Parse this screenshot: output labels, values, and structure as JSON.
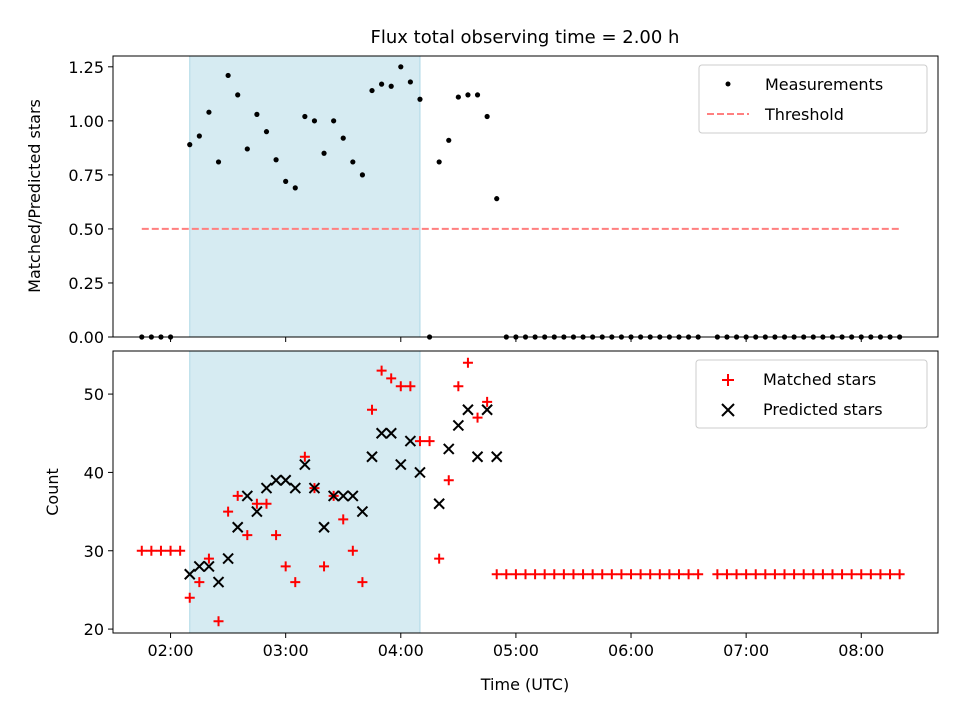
{
  "chart_data": [
    {
      "type": "scatter",
      "title": "Flux total observing time = 2.00 h",
      "ylabel": "Matched/Predicted stars",
      "xlim": [
        "01:30",
        "08:40"
      ],
      "ylim": [
        0,
        1.3
      ],
      "yticks": [
        0,
        0.25,
        0.5,
        0.75,
        1.0,
        1.25
      ],
      "ytick_labels": [
        "0.00",
        "0.25",
        "0.50",
        "0.75",
        "1.00",
        "1.25"
      ],
      "shaded_interval": [
        "02:10",
        "04:10"
      ],
      "legend_position": "top-right",
      "series": [
        {
          "name": "Measurements",
          "kind": "points",
          "color": "#000000",
          "points": [
            [
              "01:45",
              0
            ],
            [
              "01:50",
              0
            ],
            [
              "01:55",
              0
            ],
            [
              "02:00",
              0
            ],
            [
              "02:10",
              0.89
            ],
            [
              "02:15",
              0.93
            ],
            [
              "02:20",
              1.04
            ],
            [
              "02:25",
              0.81
            ],
            [
              "02:30",
              1.21
            ],
            [
              "02:35",
              1.12
            ],
            [
              "02:40",
              0.87
            ],
            [
              "02:45",
              1.03
            ],
            [
              "02:50",
              0.95
            ],
            [
              "02:55",
              0.82
            ],
            [
              "03:00",
              0.72
            ],
            [
              "03:05",
              0.69
            ],
            [
              "03:10",
              1.02
            ],
            [
              "03:15",
              1.0
            ],
            [
              "03:20",
              0.85
            ],
            [
              "03:25",
              1.0
            ],
            [
              "03:30",
              0.92
            ],
            [
              "03:35",
              0.81
            ],
            [
              "03:40",
              0.75
            ],
            [
              "03:45",
              1.14
            ],
            [
              "03:50",
              1.17
            ],
            [
              "03:55",
              1.16
            ],
            [
              "04:00",
              1.25
            ],
            [
              "04:05",
              1.18
            ],
            [
              "04:10",
              1.1
            ],
            [
              "04:15",
              0
            ],
            [
              "04:20",
              0.81
            ],
            [
              "04:25",
              0.91
            ],
            [
              "04:30",
              1.11
            ],
            [
              "04:35",
              1.12
            ],
            [
              "04:40",
              1.12
            ],
            [
              "04:45",
              1.02
            ],
            [
              "04:50",
              0.64
            ],
            [
              "04:55",
              0
            ],
            [
              "05:00",
              0
            ],
            [
              "05:05",
              0
            ],
            [
              "05:10",
              0
            ],
            [
              "05:15",
              0
            ],
            [
              "05:20",
              0
            ],
            [
              "05:25",
              0
            ],
            [
              "05:30",
              0
            ],
            [
              "05:35",
              0
            ],
            [
              "05:40",
              0
            ],
            [
              "05:45",
              0
            ],
            [
              "05:50",
              0
            ],
            [
              "05:55",
              0
            ],
            [
              "06:00",
              0
            ],
            [
              "06:05",
              0
            ],
            [
              "06:10",
              0
            ],
            [
              "06:15",
              0
            ],
            [
              "06:20",
              0
            ],
            [
              "06:25",
              0
            ],
            [
              "06:30",
              0
            ],
            [
              "06:35",
              0
            ],
            [
              "06:45",
              0
            ],
            [
              "06:50",
              0
            ],
            [
              "06:55",
              0
            ],
            [
              "07:00",
              0
            ],
            [
              "07:05",
              0
            ],
            [
              "07:10",
              0
            ],
            [
              "07:15",
              0
            ],
            [
              "07:20",
              0
            ],
            [
              "07:25",
              0
            ],
            [
              "07:30",
              0
            ],
            [
              "07:35",
              0
            ],
            [
              "07:40",
              0
            ],
            [
              "07:45",
              0
            ],
            [
              "07:50",
              0
            ],
            [
              "07:55",
              0
            ],
            [
              "08:00",
              0
            ],
            [
              "08:05",
              0
            ],
            [
              "08:10",
              0
            ],
            [
              "08:15",
              0
            ],
            [
              "08:20",
              0
            ]
          ]
        },
        {
          "name": "Threshold",
          "kind": "dashed-line",
          "color": "#ff7f7f",
          "x": [
            "01:45",
            "08:20"
          ],
          "y": 0.5
        }
      ]
    },
    {
      "type": "scatter",
      "xlabel": "Time (UTC)",
      "ylabel": "Count",
      "xlim": [
        "01:30",
        "08:40"
      ],
      "ylim": [
        19.5,
        55.5
      ],
      "xticks": [
        "02:00",
        "03:00",
        "04:00",
        "05:00",
        "06:00",
        "07:00",
        "08:00"
      ],
      "yticks": [
        20,
        30,
        40,
        50
      ],
      "shaded_interval": [
        "02:10",
        "04:10"
      ],
      "legend_position": "top-right",
      "series": [
        {
          "name": "Matched stars",
          "kind": "plus",
          "color": "#ff0000",
          "points": [
            [
              "01:45",
              30
            ],
            [
              "01:50",
              30
            ],
            [
              "01:55",
              30
            ],
            [
              "02:00",
              30
            ],
            [
              "02:05",
              30
            ],
            [
              "02:10",
              24
            ],
            [
              "02:15",
              26
            ],
            [
              "02:20",
              29
            ],
            [
              "02:25",
              21
            ],
            [
              "02:30",
              35
            ],
            [
              "02:35",
              37
            ],
            [
              "02:40",
              32
            ],
            [
              "02:45",
              36
            ],
            [
              "02:50",
              36
            ],
            [
              "02:55",
              32
            ],
            [
              "03:00",
              28
            ],
            [
              "03:05",
              26
            ],
            [
              "03:10",
              42
            ],
            [
              "03:15",
              38
            ],
            [
              "03:20",
              28
            ],
            [
              "03:25",
              37
            ],
            [
              "03:30",
              34
            ],
            [
              "03:35",
              30
            ],
            [
              "03:40",
              26
            ],
            [
              "03:45",
              48
            ],
            [
              "03:50",
              53
            ],
            [
              "03:55",
              52
            ],
            [
              "04:00",
              51
            ],
            [
              "04:05",
              51
            ],
            [
              "04:10",
              44
            ],
            [
              "04:15",
              44
            ],
            [
              "04:20",
              29
            ],
            [
              "04:25",
              39
            ],
            [
              "04:30",
              51
            ],
            [
              "04:35",
              54
            ],
            [
              "04:40",
              47
            ],
            [
              "04:45",
              49
            ],
            [
              "04:50",
              27
            ],
            [
              "04:55",
              27
            ],
            [
              "05:00",
              27
            ],
            [
              "05:05",
              27
            ],
            [
              "05:10",
              27
            ],
            [
              "05:15",
              27
            ],
            [
              "05:20",
              27
            ],
            [
              "05:25",
              27
            ],
            [
              "05:30",
              27
            ],
            [
              "05:35",
              27
            ],
            [
              "05:40",
              27
            ],
            [
              "05:45",
              27
            ],
            [
              "05:50",
              27
            ],
            [
              "05:55",
              27
            ],
            [
              "06:00",
              27
            ],
            [
              "06:05",
              27
            ],
            [
              "06:10",
              27
            ],
            [
              "06:15",
              27
            ],
            [
              "06:20",
              27
            ],
            [
              "06:25",
              27
            ],
            [
              "06:30",
              27
            ],
            [
              "06:35",
              27
            ],
            [
              "06:45",
              27
            ],
            [
              "06:50",
              27
            ],
            [
              "06:55",
              27
            ],
            [
              "07:00",
              27
            ],
            [
              "07:05",
              27
            ],
            [
              "07:10",
              27
            ],
            [
              "07:15",
              27
            ],
            [
              "07:20",
              27
            ],
            [
              "07:25",
              27
            ],
            [
              "07:30",
              27
            ],
            [
              "07:35",
              27
            ],
            [
              "07:40",
              27
            ],
            [
              "07:45",
              27
            ],
            [
              "07:50",
              27
            ],
            [
              "07:55",
              27
            ],
            [
              "08:00",
              27
            ],
            [
              "08:05",
              27
            ],
            [
              "08:10",
              27
            ],
            [
              "08:15",
              27
            ],
            [
              "08:20",
              27
            ]
          ]
        },
        {
          "name": "Predicted stars",
          "kind": "x",
          "color": "#000000",
          "points": [
            [
              "02:10",
              27
            ],
            [
              "02:15",
              28
            ],
            [
              "02:20",
              28
            ],
            [
              "02:25",
              26
            ],
            [
              "02:30",
              29
            ],
            [
              "02:35",
              33
            ],
            [
              "02:40",
              37
            ],
            [
              "02:45",
              35
            ],
            [
              "02:50",
              38
            ],
            [
              "02:55",
              39
            ],
            [
              "03:00",
              39
            ],
            [
              "03:05",
              38
            ],
            [
              "03:10",
              41
            ],
            [
              "03:15",
              38
            ],
            [
              "03:20",
              33
            ],
            [
              "03:25",
              37
            ],
            [
              "03:30",
              37
            ],
            [
              "03:35",
              37
            ],
            [
              "03:40",
              35
            ],
            [
              "03:45",
              42
            ],
            [
              "03:50",
              45
            ],
            [
              "03:55",
              45
            ],
            [
              "04:00",
              41
            ],
            [
              "04:05",
              44
            ],
            [
              "04:10",
              40
            ],
            [
              "04:20",
              36
            ],
            [
              "04:25",
              43
            ],
            [
              "04:30",
              46
            ],
            [
              "04:35",
              48
            ],
            [
              "04:40",
              42
            ],
            [
              "04:45",
              48
            ],
            [
              "04:50",
              42
            ]
          ]
        }
      ]
    }
  ]
}
